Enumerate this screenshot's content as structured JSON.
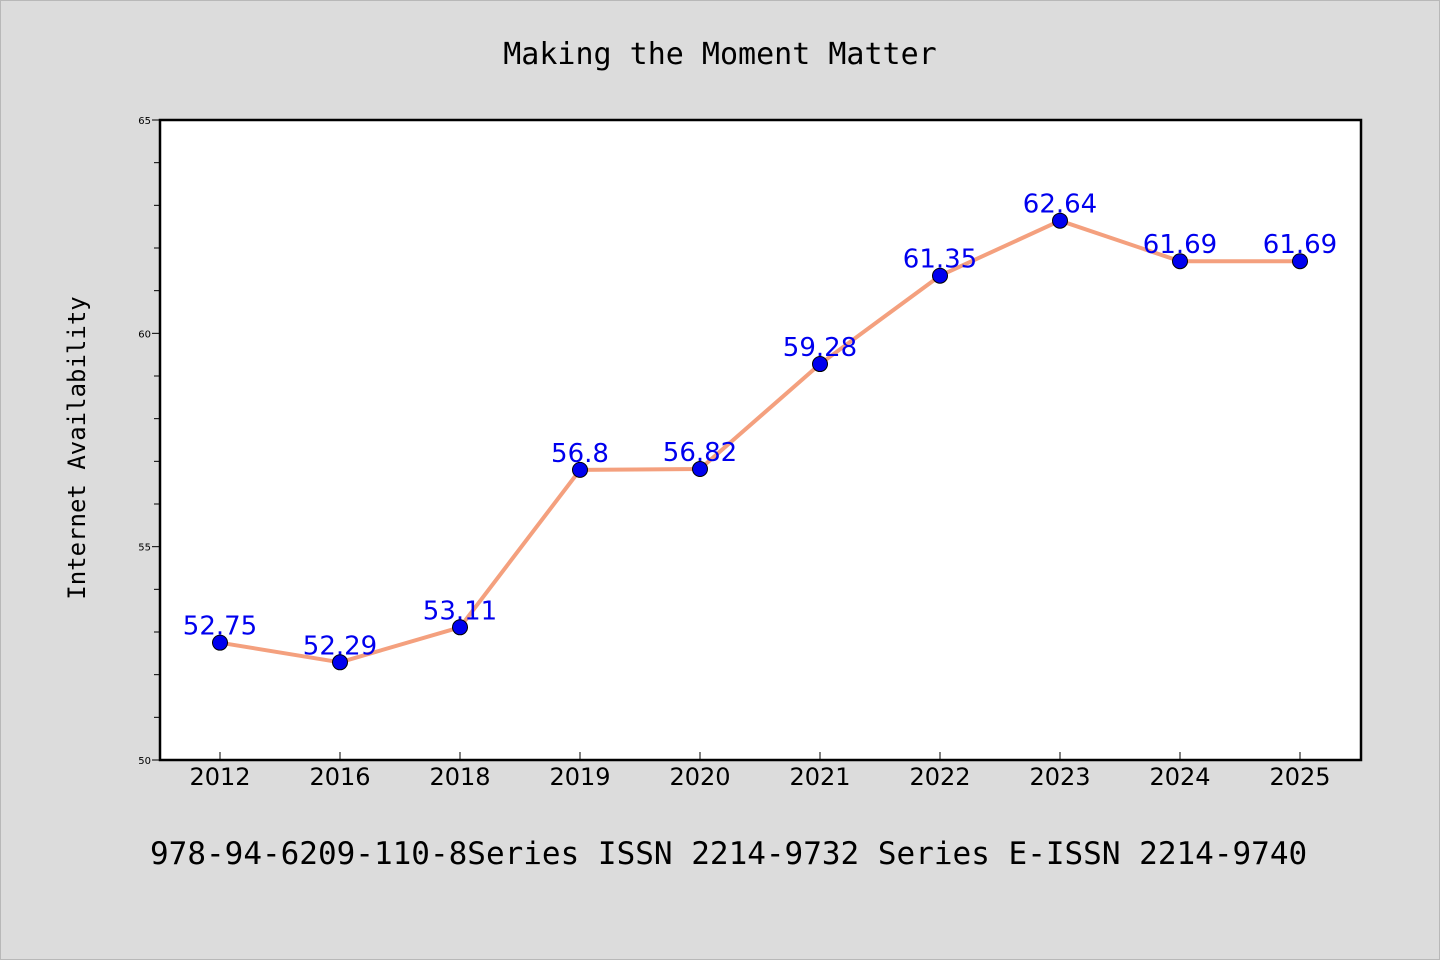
{
  "chart_data": {
    "type": "line",
    "title": "Making the Moment Matter",
    "ylabel": "Internet Availability",
    "xlabel": "",
    "caption": "978-94-6209-110-8Series ISSN 2214-9732 Series E-ISSN 2214-9740",
    "categories": [
      "2012",
      "2016",
      "2018",
      "2019",
      "2020",
      "2021",
      "2022",
      "2023",
      "2024",
      "2025"
    ],
    "series": [
      {
        "values": [
          52.75,
          52.29,
          53.11,
          56.8,
          56.82,
          59.28,
          61.35,
          62.64,
          61.69,
          61.69
        ],
        "labels": [
          "52.75",
          "52.29",
          "53.11",
          "56.8",
          "56.82",
          "59.28",
          "61.35",
          "62.64",
          "61.69",
          "61.69"
        ]
      }
    ],
    "ylim": [
      50,
      65
    ],
    "yticks": [
      "50",
      "55",
      "60",
      "65"
    ],
    "grid": false,
    "legend": "none",
    "colors": {
      "background": "#dcdcdc",
      "plot_background": "#ffffff",
      "line": "#f4a07e",
      "marker": "#0000ee",
      "data_label": "#0000ee",
      "axis": "#000000"
    }
  }
}
